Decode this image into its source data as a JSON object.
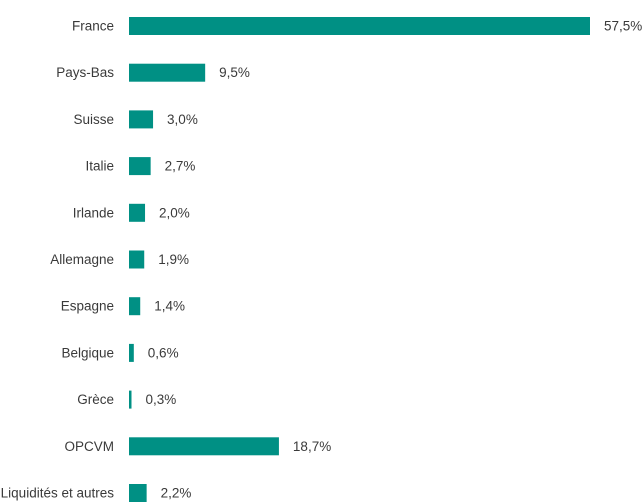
{
  "chart_data": {
    "type": "bar",
    "orientation": "horizontal",
    "categories": [
      "France",
      "Pays-Bas",
      "Suisse",
      "Italie",
      "Irlande",
      "Allemagne",
      "Espagne",
      "Belgique",
      "Grèce",
      "OPCVM",
      "Liquidités et autres"
    ],
    "values": [
      57.5,
      9.5,
      3.0,
      2.7,
      2.0,
      1.9,
      1.4,
      0.6,
      0.3,
      18.7,
      2.2
    ],
    "value_labels": [
      "57,5%",
      "9,5%",
      "3,0%",
      "2,7%",
      "2,0%",
      "1,9%",
      "1,4%",
      "0,6%",
      "0,3%",
      "18,7%",
      "2,2%"
    ],
    "bar_color": "#009084",
    "grid": false,
    "legend": "none"
  }
}
